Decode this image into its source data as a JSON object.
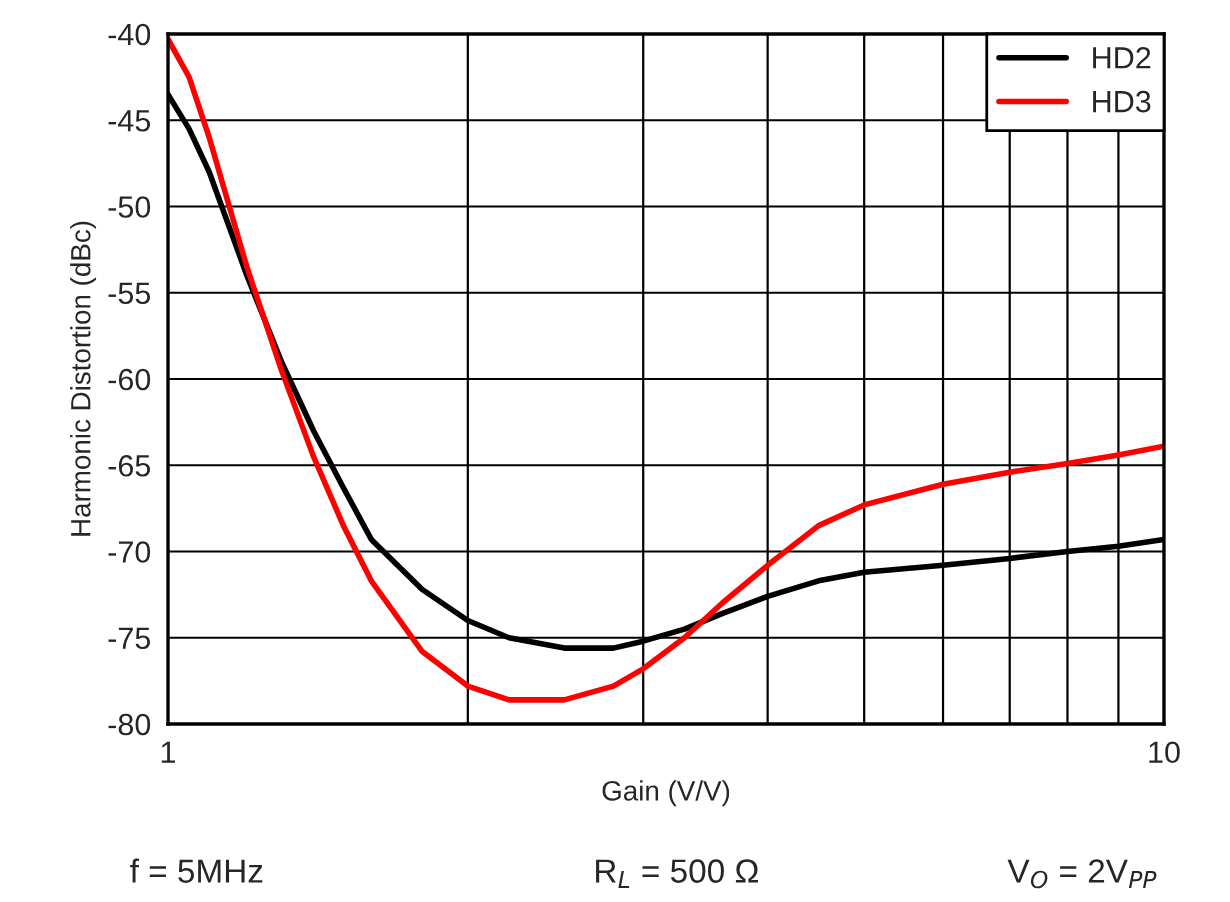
{
  "chart_data": {
    "type": "line",
    "xlabel": "Gain (V/V)",
    "ylabel": "Harmonic Distortion (dBc)",
    "x": [
      1,
      1.05,
      1.1,
      1.2,
      1.3,
      1.4,
      1.5,
      1.6,
      1.8,
      2,
      2.2,
      2.5,
      2.8,
      3,
      3.3,
      3.6,
      4,
      4.5,
      5,
      6,
      7,
      8,
      9,
      10
    ],
    "series": [
      {
        "name": "HD2",
        "color": "#000000",
        "values": [
          -43.5,
          -45.5,
          -48,
          -54,
          -59,
          -63,
          -66.3,
          -69.3,
          -72.2,
          -74,
          -75,
          -75.6,
          -75.6,
          -75.2,
          -74.5,
          -73.6,
          -72.6,
          -71.7,
          -71.2,
          -70.8,
          -70.4,
          -70,
          -69.7,
          -69.3
        ]
      },
      {
        "name": "HD3",
        "color": "#ff0000",
        "values": [
          -40.3,
          -42.5,
          -46,
          -53.5,
          -59.5,
          -64.5,
          -68.5,
          -71.7,
          -75.8,
          -77.8,
          -78.6,
          -78.6,
          -77.8,
          -76.8,
          -75,
          -73,
          -70.8,
          -68.5,
          -67.3,
          -66.1,
          -65.4,
          -64.9,
          -64.4,
          -63.9
        ]
      }
    ],
    "log": "x",
    "xlim": [
      1,
      10
    ],
    "xticks": [
      1,
      {
        "value": 2,
        "label": null
      },
      {
        "value": 3,
        "label": null
      },
      {
        "value": 4,
        "label": null
      },
      {
        "value": 5,
        "label": null
      },
      {
        "value": 6,
        "label": null
      },
      {
        "value": 7,
        "label": null
      },
      {
        "value": 8,
        "label": null
      },
      {
        "value": 9,
        "label": null
      },
      10
    ],
    "ylim": [
      -80,
      -40
    ],
    "yticks": [
      -80,
      -75,
      -70,
      -65,
      -60,
      -55,
      -50,
      -45,
      -40
    ],
    "grid": true,
    "legend": "top right",
    "marker": "none",
    "line_style": "solid",
    "annotations": [
      "f = 5MHz",
      "R$_{L}$ = 500 Ω",
      "V$_{O}$ = 2V$_{PP}$"
    ]
  }
}
